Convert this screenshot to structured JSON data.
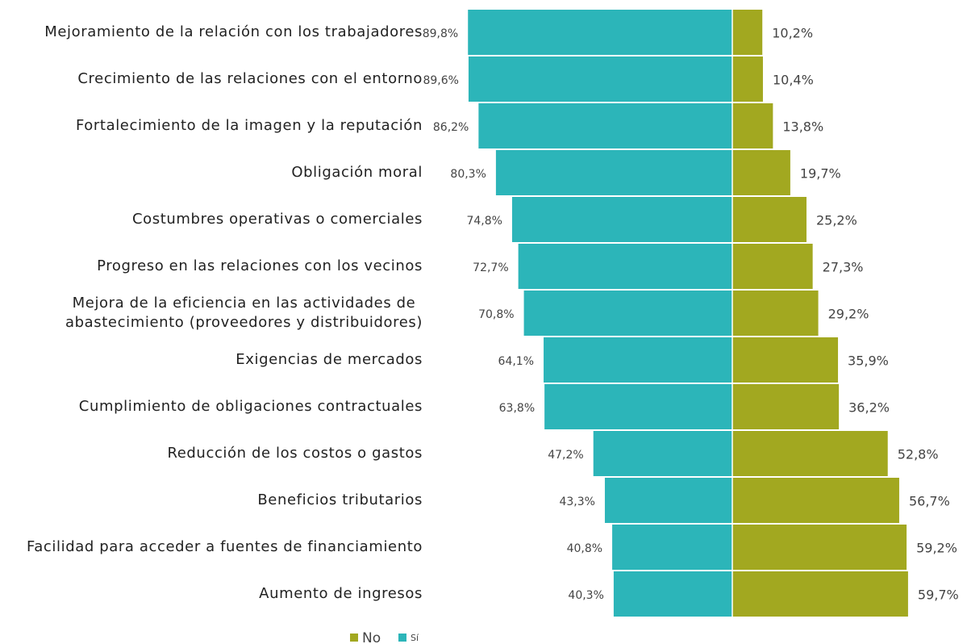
{
  "chart_data": {
    "type": "bar",
    "orientation": "horizontal",
    "layout": "diverging",
    "categories": [
      "Mejoramiento de la relación con los trabajadores",
      "Crecimiento de las relaciones con el entorno",
      "Fortalecimiento de la imagen y la reputación",
      "Obligación moral",
      "Costumbres operativas o comerciales",
      "Progreso en las relaciones con los vecinos",
      "Mejora de la eficiencia en las actividades de\nabastecimiento (proveedores y distribuidores)",
      "Exigencias de mercados",
      "Cumplimiento de obligaciones contractuales",
      "Reducción de los costos o gastos",
      "Beneficios tributarios",
      "Facilidad para acceder a fuentes de financiamiento",
      "Aumento de ingresos"
    ],
    "series": [
      {
        "name": "No",
        "color": "#a2a820",
        "side": "right",
        "values": [
          10.2,
          10.4,
          13.8,
          19.7,
          25.2,
          27.3,
          29.2,
          35.9,
          36.2,
          52.8,
          56.7,
          59.2,
          59.7
        ],
        "value_labels": [
          "10,2%",
          "10,4%",
          "13,8%",
          "19,7%",
          "25,2%",
          "27,3%",
          "29,2%",
          "35,9%",
          "36,2%",
          "52,8%",
          "56,7%",
          "59,2%",
          "59,7%"
        ]
      },
      {
        "name": "Sí",
        "color": "#2cb5b9",
        "side": "left",
        "values": [
          89.8,
          89.6,
          86.2,
          80.3,
          74.8,
          72.7,
          70.8,
          64.1,
          63.8,
          47.2,
          43.3,
          40.8,
          40.3
        ],
        "value_labels": [
          "89,8%",
          "89,6%",
          "86,2%",
          "80,3%",
          "74,8%",
          "72,7%",
          "70,8%",
          "64,1%",
          "63,8%",
          "47,2%",
          "43,3%",
          "40,8%",
          "40,3%"
        ]
      }
    ],
    "legend": "bottom"
  }
}
